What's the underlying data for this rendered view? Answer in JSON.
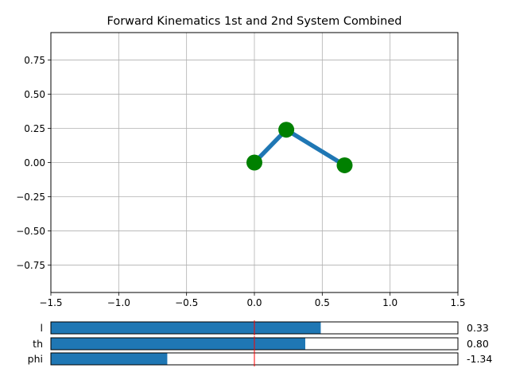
{
  "window": {
    "title": "Forward Kinematics 1st and 2nd System Combined"
  },
  "colors": {
    "link": "#1f77b4",
    "joint": "#008000",
    "grid": "#b0b0b0",
    "slider_fill": "#1f77b4",
    "slider_init_line": "#ff0000"
  },
  "chart_data": {
    "type": "line",
    "title": "Forward Kinematics 1st and 2nd System Combined",
    "xlabel": "",
    "ylabel": "",
    "xlim": [
      -1.5,
      1.5
    ],
    "ylim": [
      -0.95,
      0.95
    ],
    "x_ticks": [
      -1.5,
      -1.0,
      -0.5,
      0.0,
      0.5,
      1.0,
      1.5
    ],
    "x_tick_labels": [
      "−1.5",
      "−1.0",
      "−0.5",
      "0.0",
      "0.5",
      "1.0",
      "1.5"
    ],
    "y_ticks": [
      0.75,
      0.5,
      0.25,
      0.0,
      -0.25,
      -0.5,
      -0.75
    ],
    "y_tick_labels": [
      "0.75",
      "0.50",
      "0.25",
      "0.00",
      "−0.25",
      "−0.50",
      "−0.75"
    ],
    "grid": true,
    "series": [
      {
        "x": [
          0.0,
          0.235,
          0.665
        ],
        "y": [
          0.0,
          0.24,
          -0.02
        ]
      }
    ]
  },
  "sliders": [
    {
      "label": "l",
      "value_text": "0.33",
      "fill_fraction": 0.663,
      "init_fraction": 0.5
    },
    {
      "label": "th",
      "value_text": "0.80",
      "fill_fraction": 0.625,
      "init_fraction": 0.5
    },
    {
      "label": "phi",
      "value_text": "-1.34",
      "fill_fraction": 0.286,
      "init_fraction": 0.5
    }
  ]
}
